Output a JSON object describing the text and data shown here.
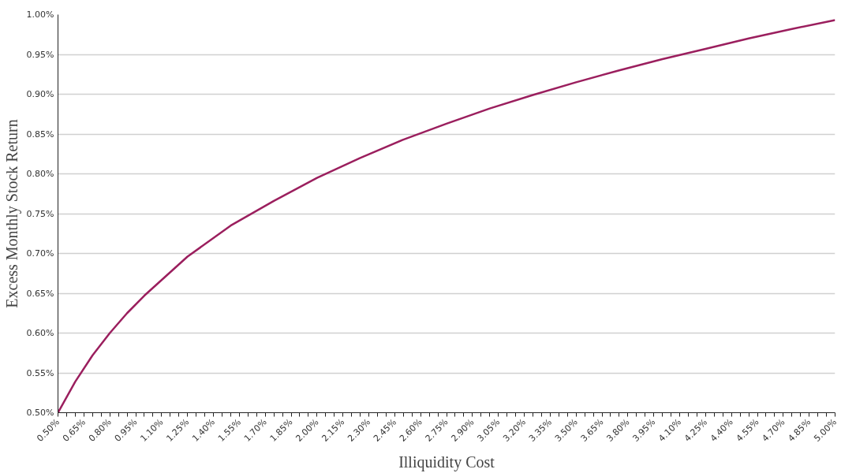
{
  "chart_data": {
    "type": "line",
    "xlabel": "Illiquidity Cost",
    "ylabel": "Excess Monthly Stock Return",
    "x": [
      0.5,
      0.6,
      0.7,
      0.8,
      0.9,
      1.0,
      1.25,
      1.5,
      1.75,
      2.0,
      2.25,
      2.5,
      2.75,
      3.0,
      3.25,
      3.5,
      3.75,
      4.0,
      4.25,
      4.5,
      4.75,
      5.0
    ],
    "series": [
      {
        "color": "#9b1f5e",
        "values": [
          0.5,
          0.539,
          0.572,
          0.6,
          0.625,
          0.647,
          0.696,
          0.735,
          0.766,
          0.795,
          0.82,
          0.843,
          0.863,
          0.882,
          0.899,
          0.915,
          0.93,
          0.944,
          0.957,
          0.97,
          0.982,
          0.993
        ]
      }
    ],
    "xlim": [
      0.5,
      5.0
    ],
    "ylim": [
      0.5,
      1.0
    ],
    "yticks": [
      {
        "value": 0.5,
        "label": "0.50%"
      },
      {
        "value": 0.55,
        "label": "0.55%"
      },
      {
        "value": 0.6,
        "label": "0.60%"
      },
      {
        "value": 0.65,
        "label": "0.65%"
      },
      {
        "value": 0.7,
        "label": "0.70%"
      },
      {
        "value": 0.75,
        "label": "0.75%"
      },
      {
        "value": 0.8,
        "label": "0.80%"
      },
      {
        "value": 0.85,
        "label": "0.85%"
      },
      {
        "value": 0.9,
        "label": "0.90%"
      },
      {
        "value": 0.95,
        "label": "0.95%"
      },
      {
        "value": 1.0,
        "label": "1.00%"
      }
    ],
    "xticks": [
      {
        "value": 0.5,
        "label": "0.50%"
      },
      {
        "value": 0.55,
        "label": null
      },
      {
        "value": 0.6,
        "label": null
      },
      {
        "value": 0.65,
        "label": "0.65%"
      },
      {
        "value": 0.7,
        "label": null
      },
      {
        "value": 0.75,
        "label": null
      },
      {
        "value": 0.8,
        "label": "0.80%"
      },
      {
        "value": 0.85,
        "label": null
      },
      {
        "value": 0.9,
        "label": null
      },
      {
        "value": 0.95,
        "label": "0.95%"
      },
      {
        "value": 1.0,
        "label": null
      },
      {
        "value": 1.05,
        "label": null
      },
      {
        "value": 1.1,
        "label": "1.10%"
      },
      {
        "value": 1.15,
        "label": null
      },
      {
        "value": 1.2,
        "label": null
      },
      {
        "value": 1.25,
        "label": "1.25%"
      },
      {
        "value": 1.3,
        "label": null
      },
      {
        "value": 1.35,
        "label": null
      },
      {
        "value": 1.4,
        "label": "1.40%"
      },
      {
        "value": 1.45,
        "label": null
      },
      {
        "value": 1.5,
        "label": null
      },
      {
        "value": 1.55,
        "label": "1.55%"
      },
      {
        "value": 1.6,
        "label": null
      },
      {
        "value": 1.65,
        "label": null
      },
      {
        "value": 1.7,
        "label": "1.70%"
      },
      {
        "value": 1.75,
        "label": null
      },
      {
        "value": 1.8,
        "label": null
      },
      {
        "value": 1.85,
        "label": "1.85%"
      },
      {
        "value": 1.9,
        "label": null
      },
      {
        "value": 1.95,
        "label": null
      },
      {
        "value": 2.0,
        "label": "2.00%"
      },
      {
        "value": 2.05,
        "label": null
      },
      {
        "value": 2.1,
        "label": null
      },
      {
        "value": 2.15,
        "label": "2.15%"
      },
      {
        "value": 2.2,
        "label": null
      },
      {
        "value": 2.25,
        "label": null
      },
      {
        "value": 2.3,
        "label": "2.30%"
      },
      {
        "value": 2.35,
        "label": null
      },
      {
        "value": 2.4,
        "label": null
      },
      {
        "value": 2.45,
        "label": "2.45%"
      },
      {
        "value": 2.5,
        "label": null
      },
      {
        "value": 2.55,
        "label": null
      },
      {
        "value": 2.6,
        "label": "2.60%"
      },
      {
        "value": 2.65,
        "label": null
      },
      {
        "value": 2.7,
        "label": null
      },
      {
        "value": 2.75,
        "label": "2.75%"
      },
      {
        "value": 2.8,
        "label": null
      },
      {
        "value": 2.85,
        "label": null
      },
      {
        "value": 2.9,
        "label": "2.90%"
      },
      {
        "value": 2.95,
        "label": null
      },
      {
        "value": 3.0,
        "label": null
      },
      {
        "value": 3.05,
        "label": "3.05%"
      },
      {
        "value": 3.1,
        "label": null
      },
      {
        "value": 3.15,
        "label": null
      },
      {
        "value": 3.2,
        "label": "3.20%"
      },
      {
        "value": 3.25,
        "label": null
      },
      {
        "value": 3.3,
        "label": null
      },
      {
        "value": 3.35,
        "label": "3.35%"
      },
      {
        "value": 3.4,
        "label": null
      },
      {
        "value": 3.45,
        "label": null
      },
      {
        "value": 3.5,
        "label": "3.50%"
      },
      {
        "value": 3.55,
        "label": null
      },
      {
        "value": 3.6,
        "label": null
      },
      {
        "value": 3.65,
        "label": "3.65%"
      },
      {
        "value": 3.7,
        "label": null
      },
      {
        "value": 3.75,
        "label": null
      },
      {
        "value": 3.8,
        "label": "3.80%"
      },
      {
        "value": 3.85,
        "label": null
      },
      {
        "value": 3.9,
        "label": null
      },
      {
        "value": 3.95,
        "label": "3.95%"
      },
      {
        "value": 4.0,
        "label": null
      },
      {
        "value": 4.05,
        "label": null
      },
      {
        "value": 4.1,
        "label": "4.10%"
      },
      {
        "value": 4.15,
        "label": null
      },
      {
        "value": 4.2,
        "label": null
      },
      {
        "value": 4.25,
        "label": "4.25%"
      },
      {
        "value": 4.3,
        "label": null
      },
      {
        "value": 4.35,
        "label": null
      },
      {
        "value": 4.4,
        "label": "4.40%"
      },
      {
        "value": 4.45,
        "label": null
      },
      {
        "value": 4.5,
        "label": null
      },
      {
        "value": 4.55,
        "label": "4.55%"
      },
      {
        "value": 4.6,
        "label": null
      },
      {
        "value": 4.65,
        "label": null
      },
      {
        "value": 4.7,
        "label": "4.70%"
      },
      {
        "value": 4.75,
        "label": null
      },
      {
        "value": 4.8,
        "label": null
      },
      {
        "value": 4.85,
        "label": "4.85%"
      },
      {
        "value": 4.9,
        "label": null
      },
      {
        "value": 4.95,
        "label": null
      },
      {
        "value": 5.0,
        "label": "5.00%"
      }
    ],
    "grid": "y"
  }
}
